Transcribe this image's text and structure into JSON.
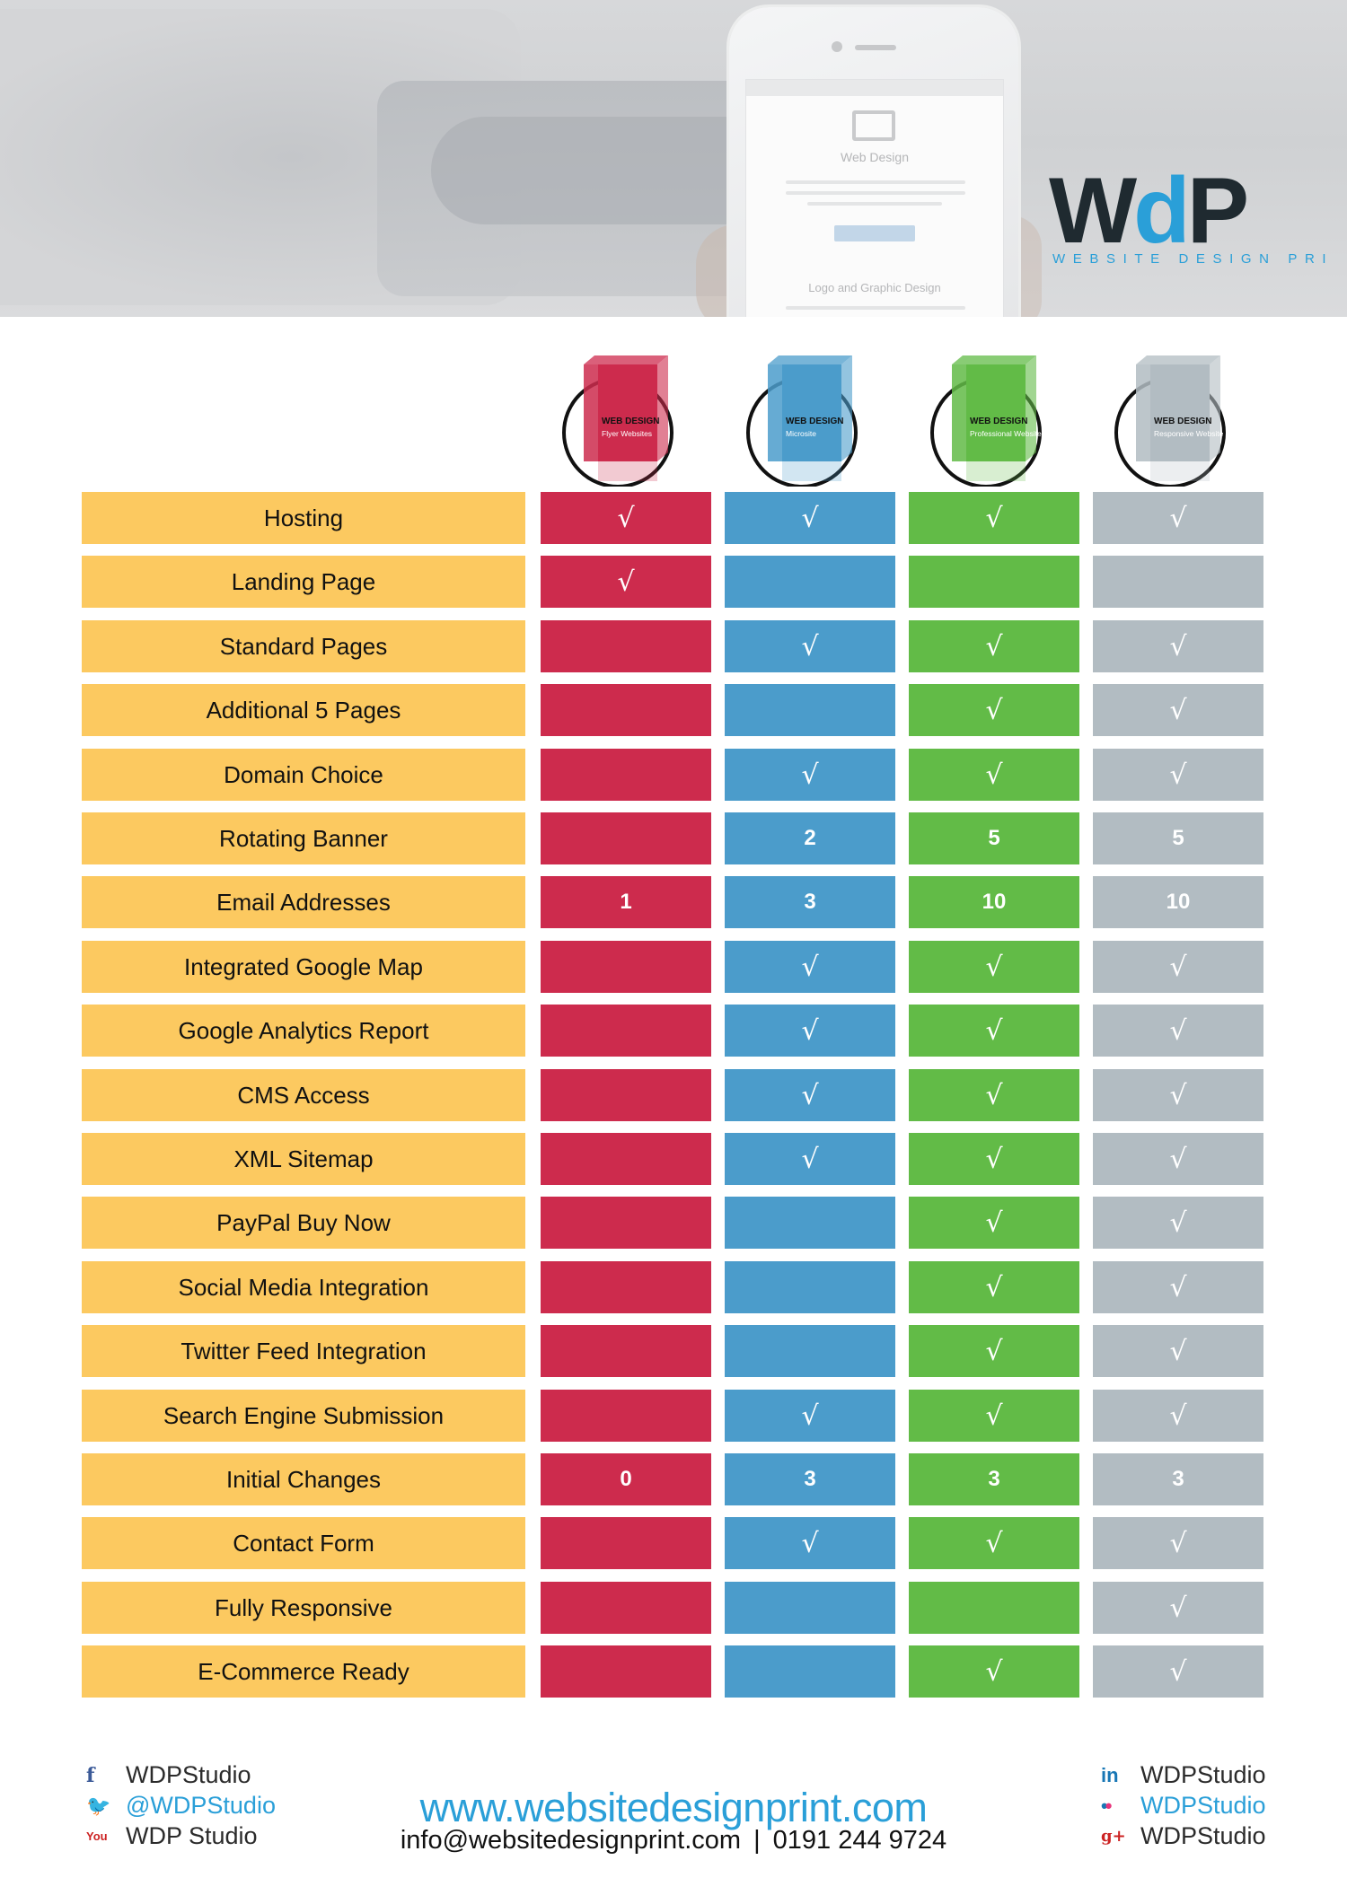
{
  "brand": {
    "logo_text": "WdP",
    "tagline": "WEBSITE DESIGN PRINT",
    "colors": {
      "dark": "#1f2a30",
      "blue": "#2a9fd8"
    }
  },
  "hero_screen": {
    "heading": "Web Design",
    "heading2": "Logo and Graphic Design"
  },
  "packages": [
    {
      "title": "WEB DESIGN",
      "subtitle": "Flyer Websites",
      "color": "#cd2b4d"
    },
    {
      "title": "WEB DESIGN",
      "subtitle": "Microsite",
      "color": "#4b9ccb"
    },
    {
      "title": "WEB DESIGN",
      "subtitle": "Professional Website",
      "color": "#62bb47"
    },
    {
      "title": "WEB DESIGN",
      "subtitle": "Responsive Website",
      "color": "#b2bcc2"
    }
  ],
  "tick_symbol": "√",
  "features": [
    {
      "label": "Hosting",
      "values": [
        "tick",
        "tick",
        "tick",
        "tick"
      ]
    },
    {
      "label": "Landing Page",
      "values": [
        "tick",
        "",
        "",
        ""
      ]
    },
    {
      "label": "Standard Pages",
      "values": [
        "",
        "tick",
        "tick",
        "tick"
      ]
    },
    {
      "label": "Additional 5 Pages",
      "values": [
        "",
        "",
        "tick",
        "tick"
      ]
    },
    {
      "label": "Domain Choice",
      "values": [
        "",
        "tick",
        "tick",
        "tick"
      ]
    },
    {
      "label": "Rotating Banner",
      "values": [
        "",
        "2",
        "5",
        "5"
      ]
    },
    {
      "label": "Email Addresses",
      "values": [
        "1",
        "3",
        "10",
        "10"
      ]
    },
    {
      "label": "Integrated Google Map",
      "values": [
        "",
        "tick",
        "tick",
        "tick"
      ]
    },
    {
      "label": "Google Analytics Report",
      "values": [
        "",
        "tick",
        "tick",
        "tick"
      ]
    },
    {
      "label": "CMS Access",
      "values": [
        "",
        "tick",
        "tick",
        "tick"
      ]
    },
    {
      "label": "XML Sitemap",
      "values": [
        "",
        "tick",
        "tick",
        "tick"
      ]
    },
    {
      "label": "PayPal Buy Now",
      "values": [
        "",
        "",
        "tick",
        "tick"
      ]
    },
    {
      "label": "Social Media Integration",
      "values": [
        "",
        "",
        "tick",
        "tick"
      ]
    },
    {
      "label": "Twitter Feed Integration",
      "values": [
        "",
        "",
        "tick",
        "tick"
      ]
    },
    {
      "label": "Search Engine Submission",
      "values": [
        "",
        "tick",
        "tick",
        "tick"
      ]
    },
    {
      "label": "Initial Changes",
      "values": [
        "0",
        "3",
        "3",
        "3"
      ]
    },
    {
      "label": "Contact Form",
      "values": [
        "",
        "tick",
        "tick",
        "tick"
      ]
    },
    {
      "label": "Fully Responsive",
      "values": [
        "",
        "",
        "",
        "tick"
      ]
    },
    {
      "label": "E-Commerce Ready",
      "values": [
        "",
        "",
        "tick",
        "tick"
      ]
    }
  ],
  "footer": {
    "social_left": [
      {
        "icon": "facebook-icon",
        "glyph": "f",
        "label": "WDPStudio"
      },
      {
        "icon": "twitter-icon",
        "glyph": "🐦",
        "label": "@WDPStudio"
      },
      {
        "icon": "youtube-icon",
        "glyph": "You",
        "label": "WDP Studio"
      }
    ],
    "social_right": [
      {
        "icon": "linkedin-icon",
        "glyph": "in",
        "label": "WDPStudio"
      },
      {
        "icon": "flickr-icon",
        "glyph": "••",
        "label": "WDPStudio"
      },
      {
        "icon": "google-plus-icon",
        "glyph": "g+",
        "label": "WDPStudio"
      }
    ],
    "website": "www.websitedesignprint.com",
    "email": "info@websitedesignprint.com",
    "separator": "|",
    "phone": "0191 244 9724"
  }
}
